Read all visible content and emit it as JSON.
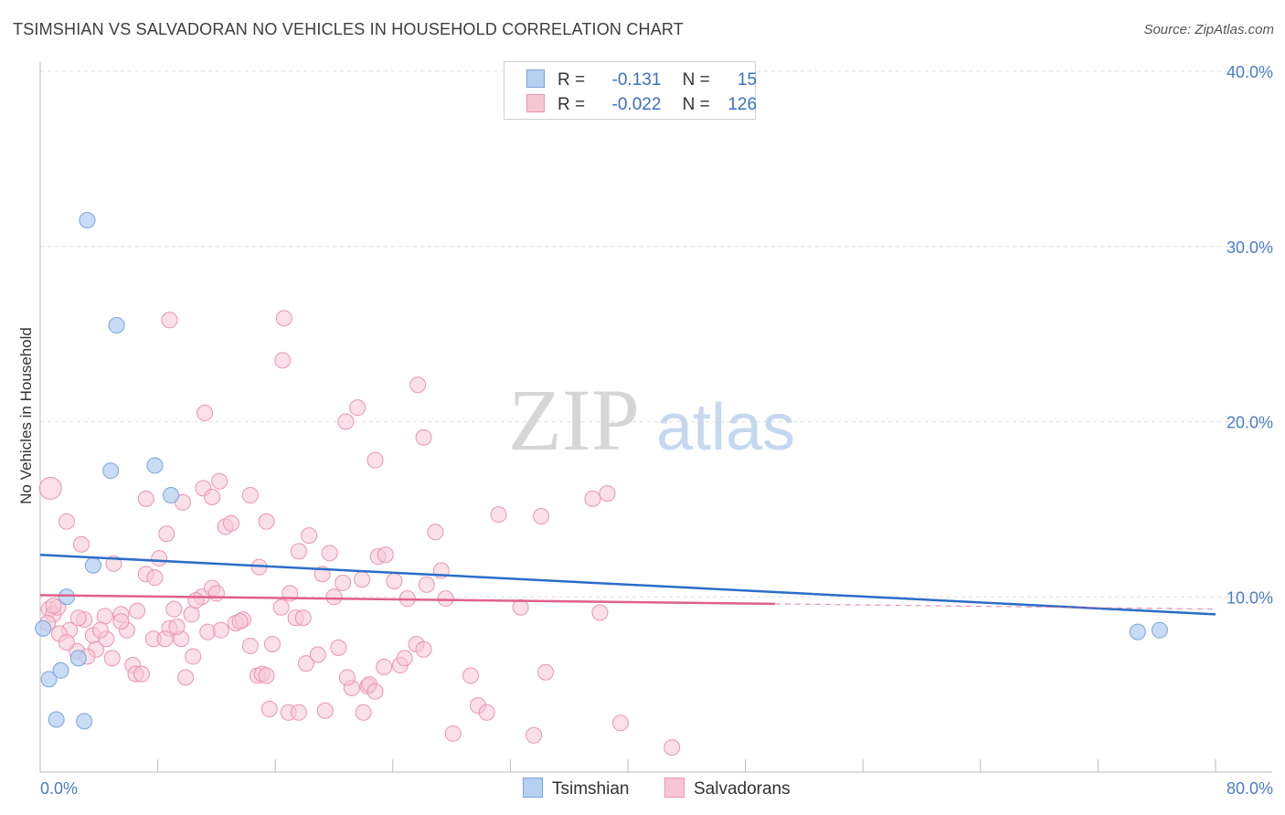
{
  "title": "TSIMSHIAN VS SALVADORAN NO VEHICLES IN HOUSEHOLD CORRELATION CHART",
  "source": "Source: ZipAtlas.com",
  "watermark": {
    "zip": "ZIP",
    "atlas": "atlas"
  },
  "colors": {
    "tsimshian_fill": "#b6d0f2",
    "tsimshian_stroke": "#7aa3dc",
    "tsimshian_line": "#2b6dc8",
    "salvadoran_fill": "#f7c6d5",
    "salvadoran_stroke": "#ec93b0",
    "salvadoran_line": "#e0608a",
    "tick_text": "#4a7cc9",
    "grid": "#e0e0e0"
  },
  "legend": {
    "rows": [
      {
        "r_label": "R =",
        "r_value": "-0.131",
        "n_label": "N =",
        "n_value": "15"
      },
      {
        "r_label": "R =",
        "r_value": "-0.022",
        "n_label": "N =",
        "n_value": "126"
      }
    ]
  },
  "bottom_legend": {
    "tsimshian": "Tsimshian",
    "salvadorans": "Salvadorans"
  },
  "chart_data": {
    "type": "scatter",
    "title": "TSIMSHIAN VS SALVADORAN NO VEHICLES IN HOUSEHOLD CORRELATION CHART",
    "xlabel": "",
    "ylabel": "No Vehicles in Household",
    "xlim": [
      0,
      80
    ],
    "ylim": [
      0,
      40
    ],
    "x_tick_labels": [
      "0.0%",
      "80.0%"
    ],
    "y_ticks": [
      10,
      20,
      30,
      40
    ],
    "y_tick_labels": [
      "10.0%",
      "20.0%",
      "30.0%",
      "40.0%"
    ],
    "series": [
      {
        "name": "Tsimshian",
        "trend": {
          "x0": 0,
          "y0": 12.4,
          "x1": 80,
          "y1": 9.0
        },
        "points": [
          [
            0.2,
            8.2
          ],
          [
            0.6,
            5.3
          ],
          [
            1.4,
            5.8
          ],
          [
            1.8,
            10.0
          ],
          [
            2.6,
            6.5
          ],
          [
            3.2,
            31.5
          ],
          [
            5.2,
            25.5
          ],
          [
            4.8,
            17.2
          ],
          [
            7.8,
            17.5
          ],
          [
            8.9,
            15.8
          ],
          [
            3.6,
            11.8
          ],
          [
            1.1,
            3.0
          ],
          [
            3.0,
            2.9
          ],
          [
            74.7,
            8.0
          ],
          [
            76.2,
            8.1
          ]
        ]
      },
      {
        "name": "Salvadorans",
        "trend": {
          "x0": 0,
          "y0": 10.1,
          "x1": 50,
          "y1": 9.6,
          "dash_to_x": 80,
          "dash_to_y": 9.3
        },
        "points": [
          [
            0.7,
            16.2
          ],
          [
            0.6,
            9.3
          ],
          [
            0.9,
            9.0
          ],
          [
            1.2,
            9.4
          ],
          [
            0.5,
            8.5
          ],
          [
            1.8,
            14.3
          ],
          [
            2.8,
            13.0
          ],
          [
            2.0,
            8.1
          ],
          [
            1.3,
            7.9
          ],
          [
            2.5,
            6.9
          ],
          [
            3.0,
            8.7
          ],
          [
            3.6,
            7.8
          ],
          [
            3.8,
            7.0
          ],
          [
            4.5,
            7.6
          ],
          [
            4.9,
            6.5
          ],
          [
            4.4,
            8.9
          ],
          [
            5.5,
            9.0
          ],
          [
            5.9,
            8.1
          ],
          [
            6.6,
            9.2
          ],
          [
            6.3,
            6.1
          ],
          [
            6.5,
            5.6
          ],
          [
            7.2,
            11.3
          ],
          [
            7.8,
            11.1
          ],
          [
            8.1,
            12.2
          ],
          [
            8.6,
            13.6
          ],
          [
            7.7,
            7.6
          ],
          [
            8.8,
            8.2
          ],
          [
            9.1,
            9.3
          ],
          [
            8.5,
            7.6
          ],
          [
            9.6,
            7.6
          ],
          [
            10.3,
            9.0
          ],
          [
            10.4,
            6.6
          ],
          [
            9.9,
            5.4
          ],
          [
            11.0,
            10.0
          ],
          [
            11.4,
            8.0
          ],
          [
            11.7,
            10.5
          ],
          [
            12.3,
            8.1
          ],
          [
            12.6,
            14.0
          ],
          [
            13.3,
            8.5
          ],
          [
            13.0,
            14.2
          ],
          [
            13.8,
            8.7
          ],
          [
            14.3,
            7.2
          ],
          [
            14.8,
            5.5
          ],
          [
            15.1,
            5.6
          ],
          [
            15.4,
            14.3
          ],
          [
            15.8,
            7.3
          ],
          [
            16.4,
            9.4
          ],
          [
            17.0,
            10.2
          ],
          [
            17.4,
            8.8
          ],
          [
            17.6,
            12.6
          ],
          [
            17.9,
            8.8
          ],
          [
            18.1,
            6.2
          ],
          [
            18.9,
            6.7
          ],
          [
            19.2,
            11.3
          ],
          [
            19.7,
            12.5
          ],
          [
            20.0,
            10.0
          ],
          [
            20.3,
            7.1
          ],
          [
            20.6,
            10.8
          ],
          [
            21.2,
            4.8
          ],
          [
            21.9,
            11.0
          ],
          [
            22.0,
            3.4
          ],
          [
            22.3,
            4.9
          ],
          [
            22.4,
            5.0
          ],
          [
            23.0,
            12.3
          ],
          [
            23.5,
            12.4
          ],
          [
            24.1,
            10.9
          ],
          [
            24.5,
            6.1
          ],
          [
            24.8,
            6.5
          ],
          [
            25.0,
            9.9
          ],
          [
            25.6,
            7.3
          ],
          [
            26.1,
            7.0
          ],
          [
            26.3,
            10.7
          ],
          [
            26.9,
            13.7
          ],
          [
            27.3,
            11.5
          ],
          [
            27.6,
            9.9
          ],
          [
            28.1,
            2.2
          ],
          [
            29.3,
            5.5
          ],
          [
            29.8,
            3.8
          ],
          [
            30.4,
            3.4
          ],
          [
            31.2,
            14.7
          ],
          [
            32.7,
            9.4
          ],
          [
            33.6,
            2.1
          ],
          [
            34.1,
            14.6
          ],
          [
            34.4,
            5.7
          ],
          [
            37.6,
            15.6
          ],
          [
            38.1,
            9.1
          ],
          [
            38.6,
            15.9
          ],
          [
            39.5,
            2.8
          ],
          [
            43.0,
            1.4
          ],
          [
            15.4,
            5.5
          ],
          [
            11.2,
            20.5
          ],
          [
            8.8,
            25.8
          ],
          [
            16.5,
            23.5
          ],
          [
            16.6,
            25.9
          ],
          [
            20.8,
            20.0
          ],
          [
            21.6,
            20.8
          ],
          [
            22.8,
            17.8
          ],
          [
            25.7,
            22.1
          ],
          [
            26.1,
            19.1
          ],
          [
            11.1,
            16.2
          ],
          [
            11.7,
            15.7
          ],
          [
            12.2,
            16.6
          ],
          [
            14.3,
            15.8
          ],
          [
            9.7,
            15.4
          ],
          [
            7.2,
            15.6
          ],
          [
            5.0,
            11.9
          ],
          [
            10.6,
            9.8
          ],
          [
            13.6,
            8.6
          ],
          [
            5.5,
            8.6
          ],
          [
            4.1,
            8.1
          ],
          [
            1.8,
            7.4
          ],
          [
            3.2,
            6.6
          ],
          [
            2.6,
            8.8
          ],
          [
            12.0,
            10.2
          ],
          [
            14.9,
            11.7
          ],
          [
            18.3,
            13.5
          ],
          [
            15.6,
            3.6
          ],
          [
            16.9,
            3.4
          ],
          [
            17.6,
            3.4
          ],
          [
            19.4,
            3.5
          ],
          [
            20.9,
            5.4
          ],
          [
            23.4,
            6.0
          ],
          [
            22.8,
            4.6
          ],
          [
            9.3,
            8.3
          ],
          [
            6.9,
            5.6
          ],
          [
            0.9,
            9.5
          ]
        ]
      }
    ]
  }
}
